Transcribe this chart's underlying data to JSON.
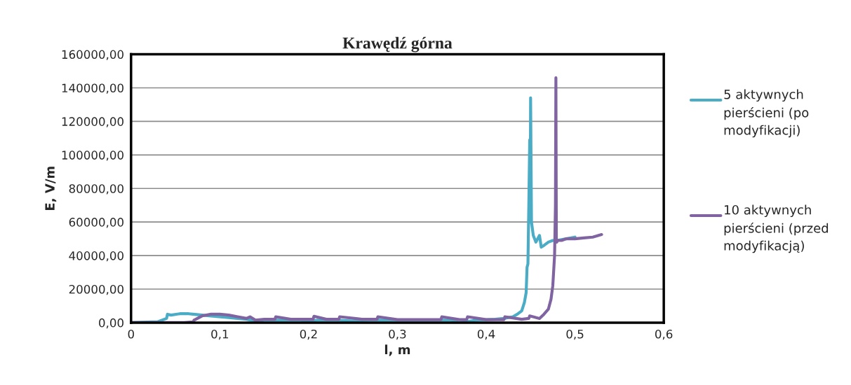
{
  "chart_data": {
    "type": "line",
    "title": "Krawędź górna",
    "xlabel": "l, m",
    "ylabel": "E, V/m",
    "xlim": [
      0,
      0.6
    ],
    "xticks": [
      0,
      {
        "value": 0.1,
        "label": "0,1"
      },
      {
        "value": 0.2,
        "label": "0,2"
      },
      {
        "value": 0.3,
        "label": "0,3"
      },
      {
        "value": 0.4,
        "label": "0,4"
      },
      {
        "value": 0.5,
        "label": "0,5"
      },
      {
        "value": 0.6,
        "label": "0,6"
      }
    ],
    "ylim": [
      0,
      160000
    ],
    "yticks": [
      {
        "value": 0,
        "label": "0,00"
      },
      {
        "value": 20000,
        "label": "20000,00"
      },
      {
        "value": 40000,
        "label": "40000,00"
      },
      {
        "value": 60000,
        "label": "60000,00"
      },
      {
        "value": 80000,
        "label": "80000,00"
      },
      {
        "value": 100000,
        "label": "100000,00"
      },
      {
        "value": 120000,
        "label": "120000,00"
      },
      {
        "value": 140000,
        "label": "140000,00"
      },
      {
        "value": 160000,
        "label": "160000,00"
      }
    ],
    "grid": "y",
    "legend": "right",
    "marker": "none",
    "line_style": "solid",
    "series": [
      {
        "name": "5 aktywnych pierścieni (po modyfikacji)",
        "color": "#4bacc6",
        "x": [
          0,
          0.03,
          0.04,
          0.041,
          0.045,
          0.055,
          0.065,
          0.07,
          0.09,
          0.11,
          0.13,
          0.14,
          0.145,
          0.15,
          0.17,
          0.19,
          0.2,
          0.21,
          0.23,
          0.25,
          0.27,
          0.3,
          0.33,
          0.36,
          0.37,
          0.39,
          0.41,
          0.42,
          0.43,
          0.435,
          0.44,
          0.443,
          0.445,
          0.446,
          0.447,
          0.448,
          0.449,
          0.4495,
          0.45,
          0.451,
          0.453,
          0.456,
          0.46,
          0.462,
          0.465,
          0.47,
          0.475,
          0.48,
          0.49,
          0.5
        ],
        "values": [
          0,
          500,
          2500,
          5000,
          4500,
          5300,
          5300,
          5000,
          4000,
          3000,
          2000,
          1000,
          0,
          1500,
          1500,
          1500,
          500,
          1500,
          1500,
          1000,
          1500,
          1500,
          1500,
          1500,
          0,
          1500,
          2000,
          2500,
          3500,
          5000,
          7000,
          12000,
          18000,
          33000,
          35000,
          70000,
          109000,
          60000,
          134000,
          60000,
          52000,
          48000,
          52000,
          45000,
          46000,
          48000,
          49000,
          49000,
          50000,
          51000
        ]
      },
      {
        "name": "10 aktywnych pierścieni (przed modyfikacją)",
        "color": "#8064a2",
        "x": [
          0,
          0.06,
          0.07,
          0.071,
          0.08,
          0.09,
          0.1,
          0.11,
          0.12,
          0.13,
          0.134,
          0.14,
          0.15,
          0.162,
          0.163,
          0.18,
          0.205,
          0.206,
          0.22,
          0.234,
          0.235,
          0.26,
          0.277,
          0.278,
          0.3,
          0.32,
          0.349,
          0.35,
          0.37,
          0.378,
          0.379,
          0.4,
          0.42,
          0.421,
          0.44,
          0.448,
          0.449,
          0.46,
          0.465,
          0.47,
          0.473,
          0.475,
          0.477,
          0.478,
          0.4785,
          0.479,
          0.4795,
          0.48,
          0.485,
          0.49,
          0.5,
          0.51,
          0.52,
          0.53
        ],
        "values": [
          0,
          0,
          500,
          1500,
          4000,
          5000,
          5000,
          4500,
          3500,
          2500,
          3500,
          1500,
          2000,
          2000,
          3500,
          2000,
          2000,
          3800,
          2000,
          2000,
          3500,
          2000,
          2000,
          3500,
          1800,
          1800,
          1800,
          3500,
          1800,
          1800,
          3500,
          1800,
          1800,
          3500,
          2000,
          2500,
          4000,
          2500,
          5000,
          8000,
          14000,
          22000,
          40000,
          70000,
          146000,
          50000,
          48000,
          49000,
          49000,
          50000,
          50000,
          50500,
          51000,
          52500
        ]
      }
    ]
  }
}
